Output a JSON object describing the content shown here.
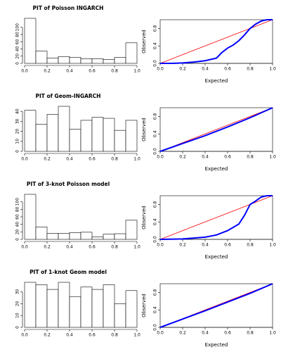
{
  "chart_data": [
    {
      "type": "histogram",
      "title": "PIT of Poisson INGARCH",
      "bins": [
        0,
        0.1,
        0.2,
        0.3,
        0.4,
        0.5,
        0.6,
        0.7,
        0.8,
        0.9,
        1
      ],
      "values": [
        125,
        34,
        15,
        19,
        17,
        13,
        13,
        11,
        17,
        57
      ],
      "color": "#ffffff",
      "xlim": [
        0,
        1
      ],
      "xticks": [
        {
          "value": 0,
          "label": "0.0"
        },
        0.2,
        0.4,
        0.6,
        0.8,
        {
          "value": 1,
          "label": "1.0"
        }
      ],
      "ylim": [
        0,
        125
      ],
      "yticks": [
        0,
        20,
        40,
        60,
        80,
        100
      ]
    },
    {
      "type": "line",
      "xlabel": "Expected",
      "ylabel": "Observed",
      "xlim": [
        0,
        1
      ],
      "ylim": [
        0,
        1
      ],
      "xticks": [
        {
          "value": 0,
          "label": "0.0"
        },
        0.2,
        0.4,
        0.6,
        0.8,
        {
          "value": 1,
          "label": "1.0"
        }
      ],
      "yticks": [
        {
          "value": 0,
          "label": "0.0"
        },
        0.4,
        0.8
      ],
      "series": [
        {
          "color": "#ff0000",
          "x": [
            0,
            1
          ],
          "values": [
            0,
            1
          ]
        },
        {
          "color": "#0000ff",
          "x": [
            0,
            0.1,
            0.2,
            0.3,
            0.4,
            0.5,
            0.55,
            0.6,
            0.65,
            0.7,
            0.75,
            0.8,
            0.85,
            0.9,
            0.95,
            1
          ],
          "values": [
            0,
            0,
            0.01,
            0.03,
            0.06,
            0.12,
            0.25,
            0.35,
            0.42,
            0.52,
            0.65,
            0.8,
            0.9,
            0.97,
            1,
            1
          ]
        }
      ]
    },
    {
      "type": "histogram",
      "title": "PIT of Geom-INGARCH",
      "bins": [
        0,
        0.1,
        0.2,
        0.3,
        0.4,
        0.5,
        0.6,
        0.7,
        0.8,
        0.9,
        1
      ],
      "values": [
        41,
        27,
        37,
        45,
        22,
        31,
        34,
        33,
        21,
        31
      ],
      "color": "#ffffff",
      "xlim": [
        0,
        1
      ],
      "xticks": [
        {
          "value": 0,
          "label": "0.0"
        },
        0.2,
        0.4,
        0.6,
        0.8,
        {
          "value": 1,
          "label": "1.0"
        }
      ],
      "ylim": [
        0,
        45
      ],
      "yticks": [
        0,
        10,
        20,
        30,
        40
      ]
    },
    {
      "type": "line",
      "xlabel": "Expected",
      "ylabel": "Observed",
      "xlim": [
        0,
        1
      ],
      "ylim": [
        0,
        1
      ],
      "xticks": [
        {
          "value": 0,
          "label": "0.0"
        },
        0.2,
        0.4,
        0.6,
        0.8,
        {
          "value": 1,
          "label": "1.0"
        }
      ],
      "yticks": [
        {
          "value": 0,
          "label": "0.0"
        },
        0.4,
        0.8
      ],
      "series": [
        {
          "color": "#ff0000",
          "x": [
            0,
            1
          ],
          "values": [
            0,
            1
          ]
        },
        {
          "color": "#0000ff",
          "x": [
            0,
            0.2,
            0.4,
            0.6,
            0.8,
            1
          ],
          "values": [
            0,
            0.18,
            0.36,
            0.56,
            0.77,
            1
          ]
        }
      ]
    },
    {
      "type": "histogram",
      "title": "PIT of 3-knot Poisson model",
      "bins": [
        0,
        0.1,
        0.2,
        0.3,
        0.4,
        0.5,
        0.6,
        0.7,
        0.8,
        0.9,
        1
      ],
      "values": [
        120,
        33,
        16,
        16,
        18,
        19,
        7,
        14,
        15,
        51
      ],
      "color": "#ffffff",
      "xlim": [
        0,
        1
      ],
      "xticks": [
        {
          "value": 0,
          "label": "0.0"
        },
        0.2,
        0.4,
        0.6,
        0.8,
        {
          "value": 1,
          "label": "1.0"
        }
      ],
      "ylim": [
        0,
        120
      ],
      "yticks": [
        0,
        20,
        40,
        60,
        80,
        100
      ]
    },
    {
      "type": "line",
      "xlabel": "Expected",
      "ylabel": "Observed",
      "xlim": [
        0,
        1
      ],
      "ylim": [
        0,
        1
      ],
      "xticks": [
        {
          "value": 0,
          "label": "0.0"
        },
        0.2,
        0.4,
        0.6,
        0.8,
        {
          "value": 1,
          "label": "1.0"
        }
      ],
      "yticks": [
        {
          "value": 0,
          "label": "0.0"
        },
        0.4,
        0.8
      ],
      "series": [
        {
          "color": "#ff0000",
          "x": [
            0,
            1
          ],
          "values": [
            0,
            1
          ]
        },
        {
          "color": "#0000ff",
          "x": [
            0,
            0.2,
            0.4,
            0.5,
            0.6,
            0.7,
            0.75,
            0.8,
            0.85,
            0.9,
            0.95,
            1
          ],
          "values": [
            0,
            0.01,
            0.05,
            0.1,
            0.2,
            0.35,
            0.55,
            0.8,
            0.88,
            0.97,
            1,
            1
          ]
        }
      ]
    },
    {
      "type": "histogram",
      "title": "PIT of 1-knot Geom model",
      "bins": [
        0,
        0.1,
        0.2,
        0.3,
        0.4,
        0.5,
        0.6,
        0.7,
        0.8,
        0.9,
        1
      ],
      "values": [
        38,
        36,
        32,
        38,
        26,
        34,
        32,
        36,
        20,
        31
      ],
      "color": "#ffffff",
      "xlim": [
        0,
        1
      ],
      "xticks": [
        {
          "value": 0,
          "label": "0.0"
        },
        0.2,
        0.4,
        0.6,
        0.8,
        {
          "value": 1,
          "label": "1.0"
        }
      ],
      "ylim": [
        0,
        38
      ],
      "yticks": [
        0,
        10,
        20,
        30
      ]
    },
    {
      "type": "line",
      "xlabel": "Expected",
      "ylabel": "Observed",
      "xlim": [
        0,
        1
      ],
      "ylim": [
        0,
        1
      ],
      "xticks": [
        {
          "value": 0,
          "label": "0.0"
        },
        0.2,
        0.4,
        0.6,
        0.8,
        {
          "value": 1,
          "label": "1.0"
        }
      ],
      "yticks": [
        {
          "value": 0,
          "label": "0.0"
        },
        0.4,
        0.8
      ],
      "series": [
        {
          "color": "#ff0000",
          "x": [
            0,
            1
          ],
          "values": [
            0,
            1
          ]
        },
        {
          "color": "#0000ff",
          "x": [
            0,
            0.2,
            0.4,
            0.6,
            0.8,
            1
          ],
          "values": [
            0,
            0.19,
            0.38,
            0.58,
            0.78,
            1
          ]
        }
      ]
    }
  ]
}
